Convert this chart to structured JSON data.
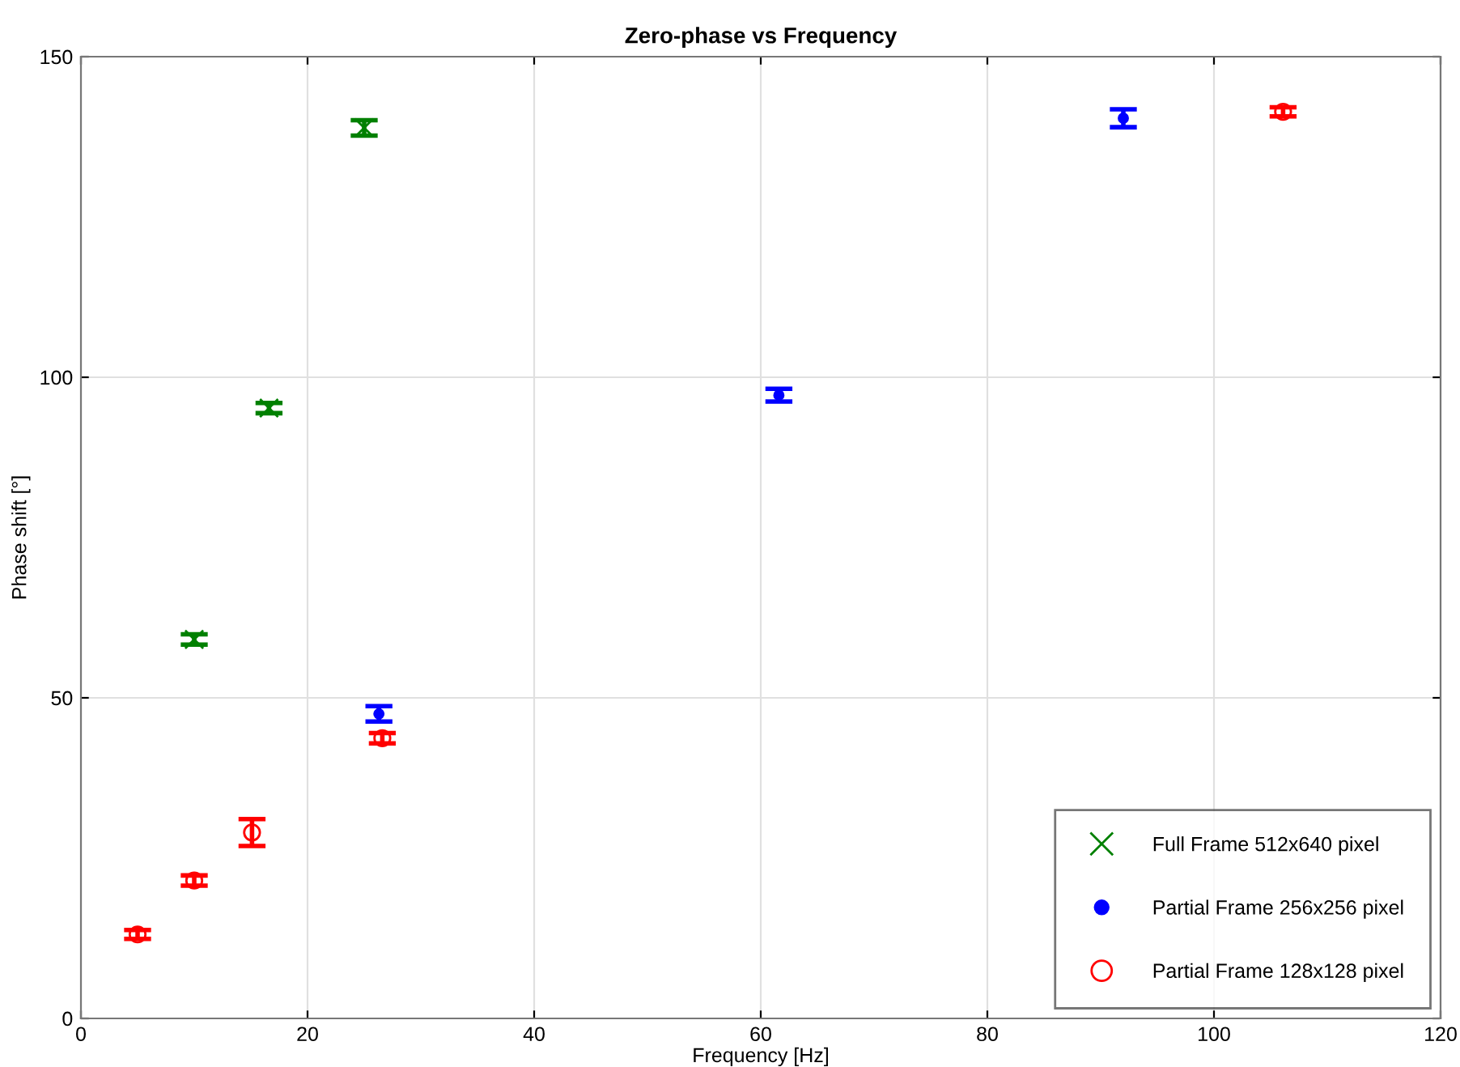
{
  "chart_data": {
    "type": "scatter",
    "title": "Zero-phase vs Frequency",
    "xlabel": "Frequency [Hz]",
    "ylabel": "Phase shift [°]",
    "series": [
      {
        "name": "Full Frame 512x640 pixel",
        "color": "#008000",
        "marker": "cross",
        "x": [
          10.0,
          16.6,
          25.0
        ],
        "values": [
          59.1,
          95.2,
          138.9
        ],
        "errors": [
          0.8,
          0.8,
          1.2
        ]
      },
      {
        "name": "Partial Frame 256x256 pixel",
        "color": "#0000ff",
        "marker": "circle",
        "x": [
          26.3,
          61.6,
          92.0
        ],
        "values": [
          47.5,
          97.2,
          140.4
        ],
        "errors": [
          1.2,
          1.0,
          1.4
        ]
      },
      {
        "name": "Partial Frame 128x128 pixel",
        "color": "#ff0000",
        "marker": "circle",
        "x": [
          5.0,
          10.0,
          15.1,
          26.6,
          106.1
        ],
        "values": [
          13.1,
          21.5,
          29.0,
          43.7,
          141.4
        ],
        "errors": [
          0.7,
          0.8,
          2.1,
          0.8,
          0.7
        ]
      }
    ],
    "xlim": [
      0,
      120
    ],
    "xticks": [
      0,
      20,
      40,
      60,
      80,
      100,
      120
    ],
    "ylim": [
      0,
      150
    ],
    "yticks": [
      0,
      50,
      100,
      150
    ],
    "grid": true,
    "legend": "bottom right"
  }
}
